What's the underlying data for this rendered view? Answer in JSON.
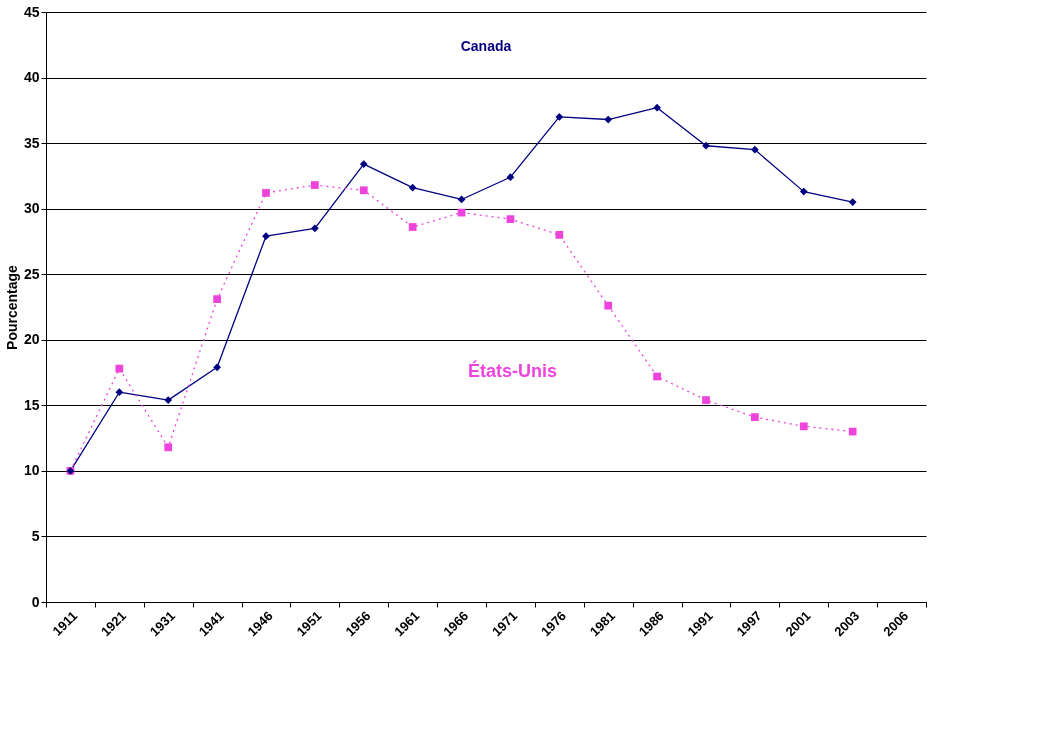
{
  "chart_data": {
    "type": "line",
    "ylabel": "Pourcentage",
    "categories": [
      "1911",
      "1921",
      "1931",
      "1941",
      "1946",
      "1951",
      "1956",
      "1961",
      "1966",
      "1971",
      "1976",
      "1981",
      "1986",
      "1991",
      "1997",
      "2001",
      "2003",
      "2006"
    ],
    "series": [
      {
        "name": "Canada",
        "color": "#000080",
        "marker": "diamond",
        "line_style": "solid",
        "values": [
          10.0,
          16.0,
          15.4,
          17.9,
          27.9,
          28.5,
          33.4,
          31.6,
          30.7,
          32.4,
          37.0,
          36.8,
          37.7,
          34.8,
          34.5,
          31.3,
          30.5,
          null
        ]
      },
      {
        "name": "États-Unis",
        "color": "#ee44dd",
        "marker": "square",
        "line_style": "dotted",
        "values": [
          10.0,
          17.8,
          11.8,
          23.1,
          31.2,
          31.8,
          31.4,
          28.6,
          29.7,
          29.2,
          28.0,
          22.6,
          17.2,
          15.4,
          14.1,
          13.4,
          13.0,
          null
        ]
      }
    ],
    "ylim": [
      0,
      45
    ],
    "yticks": [
      0,
      5,
      10,
      15,
      20,
      25,
      30,
      35,
      40,
      45
    ],
    "grid": "y",
    "legend": false
  }
}
